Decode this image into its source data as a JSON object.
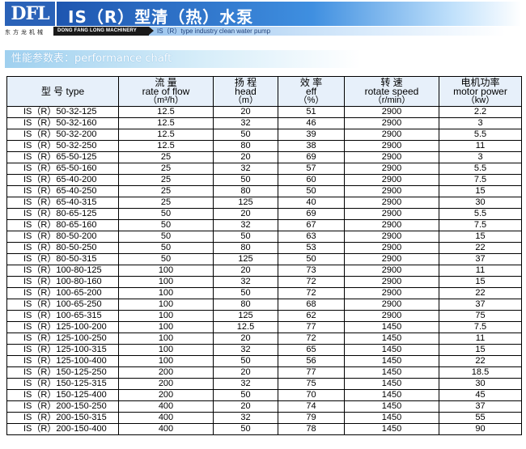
{
  "header": {
    "logo_mark": "DFL",
    "logo_cn": "东方龙机械",
    "logo_en": "DONG FANG LONG MACHINERY",
    "title": "IS（R）型清（热）水泵",
    "subtitle": "IS（R）type industry clean water pump"
  },
  "section": {
    "title": "性能参数表：performance chaft"
  },
  "table": {
    "columns": [
      {
        "label": "型 号 type",
        "unit": ""
      },
      {
        "label": "流 量",
        "label2": "rate of flow",
        "unit": "（m³/h）"
      },
      {
        "label": "扬 程",
        "label2": "head",
        "unit": "（m）"
      },
      {
        "label": "效 率",
        "label2": "eff",
        "unit": "（%）"
      },
      {
        "label": "转 速",
        "label2": "rotate speed",
        "unit": "（r/min）"
      },
      {
        "label": "电机功率",
        "label2": "motor power",
        "unit": "（kw）"
      }
    ],
    "rows": [
      [
        "IS（R）50-32-125",
        "12.5",
        "20",
        "51",
        "2900",
        "2.2"
      ],
      [
        "IS（R）50-32-160",
        "12.5",
        "32",
        "46",
        "2900",
        "3"
      ],
      [
        "IS（R）50-32-200",
        "12.5",
        "50",
        "39",
        "2900",
        "5.5"
      ],
      [
        "IS（R）50-32-250",
        "12.5",
        "80",
        "38",
        "2900",
        "11"
      ],
      [
        "IS（R）65-50-125",
        "25",
        "20",
        "69",
        "2900",
        "3"
      ],
      [
        "IS（R）65-50-160",
        "25",
        "32",
        "57",
        "2900",
        "5.5"
      ],
      [
        "IS（R）65-40-200",
        "25",
        "50",
        "60",
        "2900",
        "7.5"
      ],
      [
        "IS（R）65-40-250",
        "25",
        "80",
        "50",
        "2900",
        "15"
      ],
      [
        "IS（R）65-40-315",
        "25",
        "125",
        "40",
        "2900",
        "30"
      ],
      [
        "IS（R）80-65-125",
        "50",
        "20",
        "69",
        "2900",
        "5.5"
      ],
      [
        "IS（R）80-65-160",
        "50",
        "32",
        "67",
        "2900",
        "7.5"
      ],
      [
        "IS（R）80-50-200",
        "50",
        "50",
        "63",
        "2900",
        "15"
      ],
      [
        "IS（R）80-50-250",
        "50",
        "80",
        "53",
        "2900",
        "22"
      ],
      [
        "IS（R）80-50-315",
        "50",
        "125",
        "50",
        "2900",
        "37"
      ],
      [
        "IS（R）100-80-125",
        "100",
        "20",
        "73",
        "2900",
        "11"
      ],
      [
        "IS（R）100-80-160",
        "100",
        "32",
        "72",
        "2900",
        "15"
      ],
      [
        "IS（R）100-65-200",
        "100",
        "50",
        "72",
        "2900",
        "22"
      ],
      [
        "IS（R）100-65-250",
        "100",
        "80",
        "68",
        "2900",
        "37"
      ],
      [
        "IS（R）100-65-315",
        "100",
        "125",
        "62",
        "2900",
        "75"
      ],
      [
        "IS（R）125-100-200",
        "100",
        "12.5",
        "77",
        "1450",
        "7.5"
      ],
      [
        "IS（R）125-100-250",
        "100",
        "20",
        "72",
        "1450",
        "11"
      ],
      [
        "IS（R）125-100-315",
        "100",
        "32",
        "65",
        "1450",
        "15"
      ],
      [
        "IS（R）125-100-400",
        "100",
        "50",
        "56",
        "1450",
        "22"
      ],
      [
        "IS（R）150-125-250",
        "200",
        "20",
        "77",
        "1450",
        "18.5"
      ],
      [
        "IS（R）150-125-315",
        "200",
        "32",
        "75",
        "1450",
        "30"
      ],
      [
        "IS（R）150-125-400",
        "200",
        "50",
        "70",
        "1450",
        "45"
      ],
      [
        "IS（R）200-150-250",
        "400",
        "20",
        "74",
        "1450",
        "37"
      ],
      [
        "IS（R）200-150-315",
        "400",
        "32",
        "79",
        "1450",
        "55"
      ],
      [
        "IS（R）200-150-400",
        "400",
        "50",
        "78",
        "1450",
        "90"
      ]
    ]
  },
  "colors": {
    "title_bar_start": "#1e56b0",
    "title_bar_end": "#bfe0fb",
    "section_bar": "#9fd0ef",
    "header_cell_bg": "#e7f0fa"
  }
}
